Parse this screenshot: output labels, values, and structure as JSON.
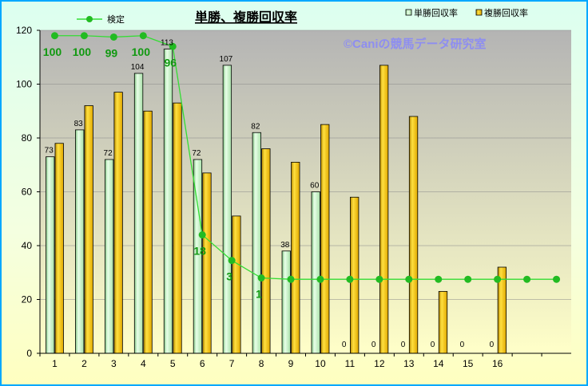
{
  "chart_data": {
    "type": "bar",
    "title": "単勝、複勝回収率",
    "watermark": "©Caniの競馬データ研究室",
    "categories": [
      "1",
      "2",
      "3",
      "4",
      "5",
      "6",
      "7",
      "8",
      "9",
      "10",
      "11",
      "12",
      "13",
      "14",
      "15",
      "16",
      "",
      ""
    ],
    "ylim": [
      0,
      120
    ],
    "yticks": [
      0,
      20,
      40,
      60,
      80,
      100,
      120
    ],
    "series": [
      {
        "name": "単勝回収率",
        "color": "#c8f0c8",
        "values": [
          73,
          83,
          72,
          104,
          113,
          72,
          107,
          82,
          38,
          60,
          0,
          0,
          0,
          0,
          0,
          0,
          null,
          null
        ],
        "labels": [
          "73",
          "83",
          "72",
          "104",
          "113",
          "72",
          "107",
          "82",
          "38",
          "60",
          "0",
          "0",
          "0",
          "0",
          "0",
          "0",
          "",
          ""
        ]
      },
      {
        "name": "複勝回収率",
        "color": "#ffc800",
        "values": [
          78,
          92,
          97,
          90,
          93,
          67,
          51,
          76,
          71,
          85,
          58,
          107,
          88,
          23,
          0,
          32,
          null,
          null
        ]
      }
    ],
    "line": {
      "name": "検定",
      "color": "#33dd33",
      "values": [
        118,
        118,
        117.5,
        118,
        114,
        44,
        34.5,
        28,
        27.5,
        27.5,
        27.5,
        27.5,
        27.5,
        27.5,
        27.5,
        27.5,
        27.5,
        27.5
      ],
      "labels": [
        "100",
        "100",
        "99",
        "100",
        "96",
        "18",
        "3",
        "1",
        "",
        "",
        "",
        "",
        "",
        "",
        "",
        "",
        "",
        ""
      ]
    },
    "legend_placement": "top"
  }
}
